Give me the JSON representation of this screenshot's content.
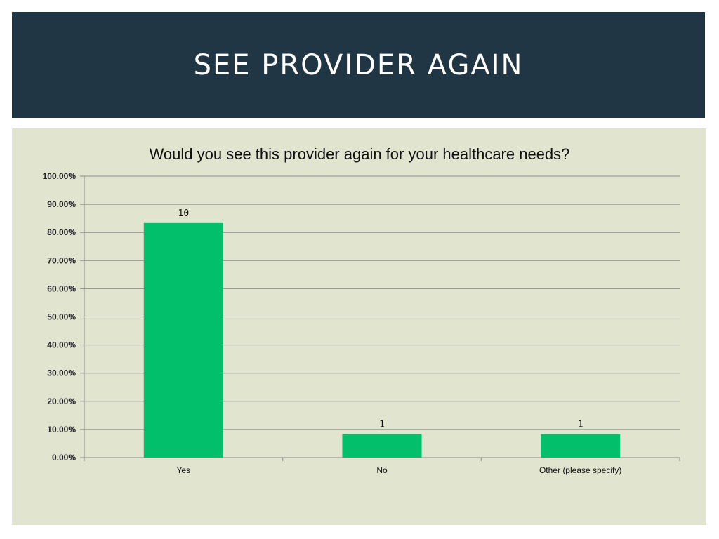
{
  "slide": {
    "heading": "SEE PROVIDER AGAIN"
  },
  "colors": {
    "header_bg": "#203644",
    "panel_bg": "#e1e5d0",
    "bar": "#02bf6c"
  },
  "chart_data": {
    "type": "bar",
    "title": "Would you see this provider again for your healthcare needs?",
    "categories": [
      "Yes",
      "No",
      "Other (please specify)"
    ],
    "values": [
      83.33,
      8.33,
      8.33
    ],
    "data_labels": [
      "10",
      "1",
      "1"
    ],
    "ylim": [
      0,
      100
    ],
    "yticks": [
      "0.00%",
      "10.00%",
      "20.00%",
      "30.00%",
      "40.00%",
      "50.00%",
      "60.00%",
      "70.00%",
      "80.00%",
      "90.00%",
      "100.00%"
    ],
    "grid": true,
    "legend": "none"
  }
}
